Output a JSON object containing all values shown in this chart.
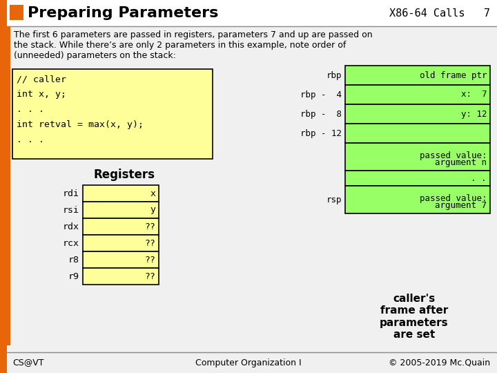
{
  "title": "Preparing Parameters",
  "subtitle": "X86-64 Calls   7",
  "orange_bar_color": "#E8650A",
  "bg_color": "#F0F0F0",
  "body_text_line1": "The first 6 parameters are passed in registers, parameters 7 and up are passed on",
  "body_text_line2": "the stack. While there’s are only 2 parameters in this example, note order of",
  "body_text_line3": "(unneeded) parameters on the stack:",
  "code_lines": [
    "// caller",
    "int x, y;",
    ". . .",
    "int retval = max(x, y);",
    ". . ."
  ],
  "code_bg": "#FFFF99",
  "registers_label": "Registers",
  "reg_names": [
    "rdi",
    "rsi",
    "rdx",
    "rcx",
    "r8",
    "r9"
  ],
  "reg_values": [
    "x",
    "y",
    "??",
    "??",
    "??",
    "??"
  ],
  "reg_bg": "#FFFF99",
  "stack_bg": "#99FF66",
  "caller_note": "caller's\nframe after\nparameters\nare set",
  "footer_left": "CS@VT",
  "footer_center": "Computer Organization I",
  "footer_right": "© 2005-2019 Mc.Quain"
}
